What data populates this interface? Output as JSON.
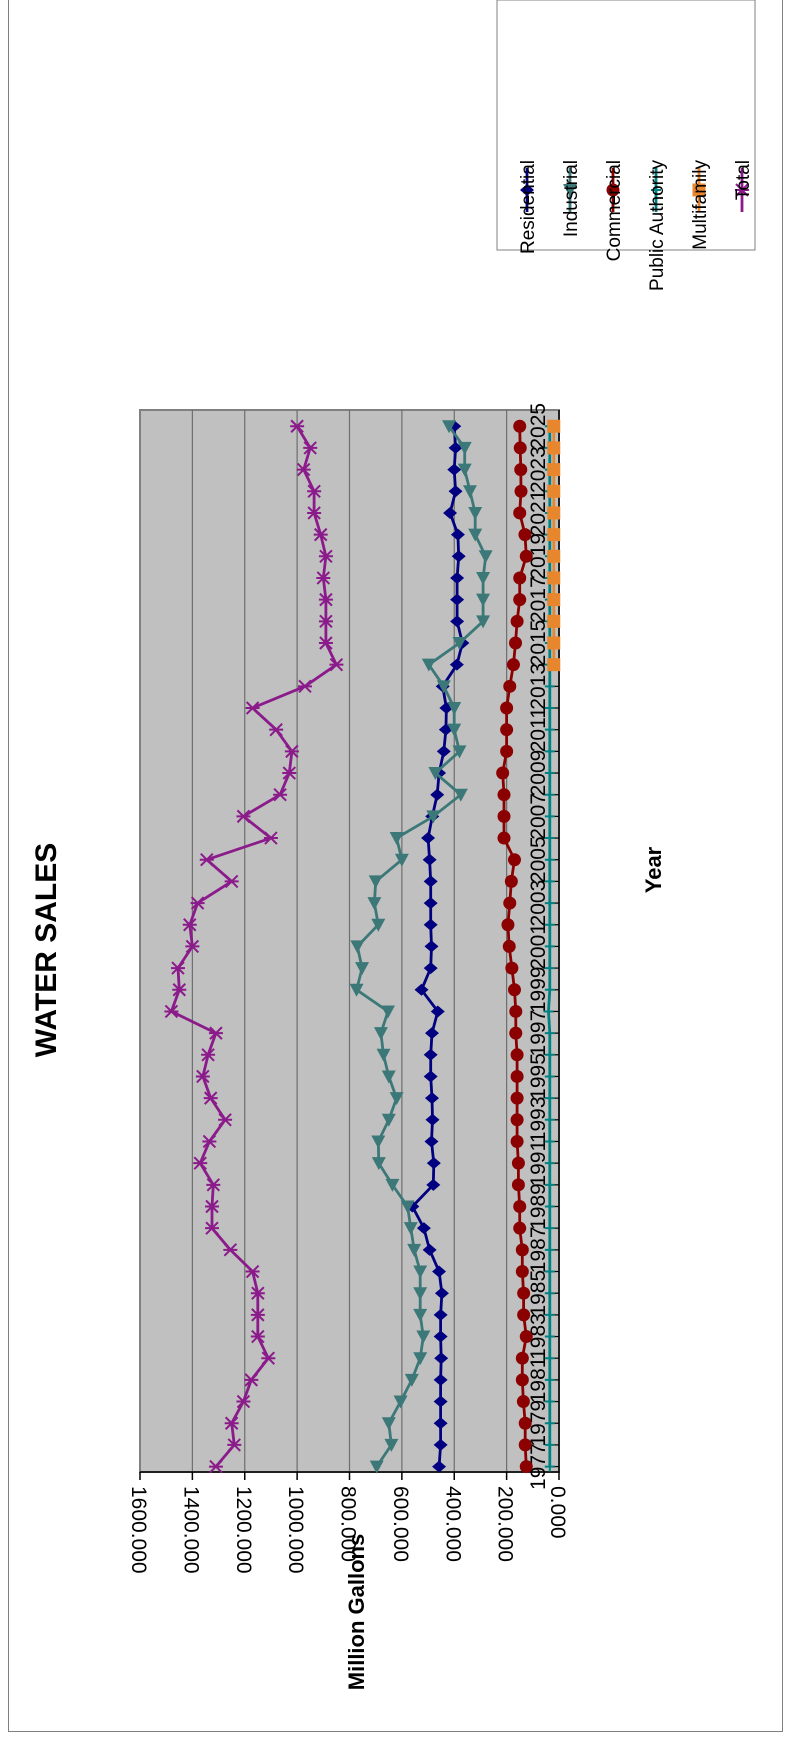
{
  "chart_data": {
    "type": "line",
    "title": "WATER SALES",
    "xlabel": "Year",
    "ylabel": "Million Gallons",
    "ylim": [
      0,
      1600
    ],
    "yticks": [
      "0.000",
      "200.000",
      "400.000",
      "600.000",
      "800.000",
      "1000.000",
      "1200.000",
      "1400.000",
      "1600.000"
    ],
    "xticks": [
      "1977",
      "1979",
      "1981",
      "1983",
      "1985",
      "1987",
      "1989",
      "1991",
      "1993",
      "1995",
      "1997",
      "1999",
      "2001",
      "2003",
      "2005",
      "2007",
      "2009",
      "2011",
      "2013",
      "2015",
      "2017",
      "2019",
      "2021",
      "2023",
      "2025"
    ],
    "grid": true,
    "legend_position": "right",
    "x": [
      1977,
      1978,
      1979,
      1980,
      1981,
      1982,
      1983,
      1984,
      1985,
      1986,
      1987,
      1988,
      1989,
      1990,
      1991,
      1992,
      1993,
      1994,
      1995,
      1996,
      1997,
      1998,
      1999,
      2000,
      2001,
      2002,
      2003,
      2004,
      2005,
      2006,
      2007,
      2008,
      2009,
      2010,
      2011,
      2012,
      2013,
      2014,
      2015,
      2016,
      2017,
      2018,
      2019,
      2020,
      2021,
      2022,
      2023,
      2024,
      2025
    ],
    "series": [
      {
        "name": "Residential",
        "color": "#000080",
        "marker": "diamond",
        "values": [
          458,
          452,
          452,
          452,
          452,
          450,
          452,
          452,
          447,
          458,
          494,
          516,
          560,
          480,
          478,
          487,
          483,
          485,
          490,
          490,
          485,
          463,
          525,
          490,
          487,
          490,
          490,
          490,
          494,
          500,
          484,
          465,
          458,
          440,
          432,
          430,
          444,
          390,
          369,
          389,
          389,
          389,
          383,
          386,
          416,
          395,
          400,
          395,
          400
        ]
      },
      {
        "name": "Industrial",
        "color": "#3C7878",
        "marker": "triangle",
        "values": [
          696,
          640,
          650,
          605,
          562,
          530,
          518,
          530,
          530,
          530,
          553,
          566,
          578,
          636,
          688,
          690,
          650,
          620,
          650,
          670,
          680,
          653,
          773,
          752,
          770,
          690,
          705,
          700,
          600,
          620,
          480,
          375,
          472,
          380,
          400,
          400,
          440,
          497,
          380,
          290,
          290,
          290,
          280,
          320,
          320,
          340,
          360,
          360,
          420
        ]
      },
      {
        "name": "Commercial",
        "color": "#8B0000",
        "marker": "circle",
        "values": [
          125,
          129,
          129,
          136,
          140,
          140,
          125,
          135,
          135,
          140,
          140,
          150,
          150,
          155,
          155,
          160,
          160,
          160,
          160,
          160,
          165,
          165,
          170,
          180,
          190,
          195,
          188,
          182,
          170,
          210,
          210,
          210,
          215,
          200,
          200,
          200,
          188,
          174,
          166,
          160,
          150,
          150,
          125,
          130,
          150,
          145,
          146,
          148,
          150
        ]
      },
      {
        "name": "Public Authority",
        "color": "#008080",
        "marker": "plus",
        "values": [
          35,
          35,
          35,
          35,
          35,
          35,
          35,
          35,
          35,
          35,
          35,
          35,
          35,
          35,
          35,
          35,
          35,
          35,
          35,
          35,
          35,
          40,
          35,
          35,
          35,
          35,
          35,
          35,
          35,
          35,
          35,
          35,
          35,
          35,
          35,
          35,
          35,
          35,
          35,
          35,
          35,
          35,
          35,
          35,
          35,
          35,
          35,
          35,
          35
        ]
      },
      {
        "name": "Multifamily",
        "color": "#E8862E",
        "marker": "square",
        "values": [
          null,
          null,
          null,
          null,
          null,
          null,
          null,
          null,
          null,
          null,
          null,
          null,
          null,
          null,
          null,
          null,
          null,
          null,
          null,
          null,
          null,
          null,
          null,
          null,
          null,
          null,
          null,
          null,
          null,
          null,
          null,
          null,
          null,
          null,
          null,
          null,
          null,
          20,
          20,
          20,
          20,
          20,
          20,
          20,
          20,
          20,
          20,
          20,
          20
        ]
      },
      {
        "name": "Total",
        "color": "#8B1A8B",
        "marker": "star",
        "values": [
          1310,
          1240,
          1250,
          1205,
          1175,
          1110,
          1150,
          1150,
          1150,
          1170,
          1255,
          1325,
          1325,
          1320,
          1370,
          1335,
          1275,
          1330,
          1360,
          1340,
          1310,
          1480,
          1450,
          1455,
          1400,
          1410,
          1380,
          1250,
          1345,
          1100,
          1205,
          1065,
          1030,
          1020,
          1080,
          1170,
          970,
          850,
          890,
          890,
          890,
          900,
          890,
          910,
          935,
          935,
          975,
          950,
          1000
        ]
      }
    ]
  }
}
